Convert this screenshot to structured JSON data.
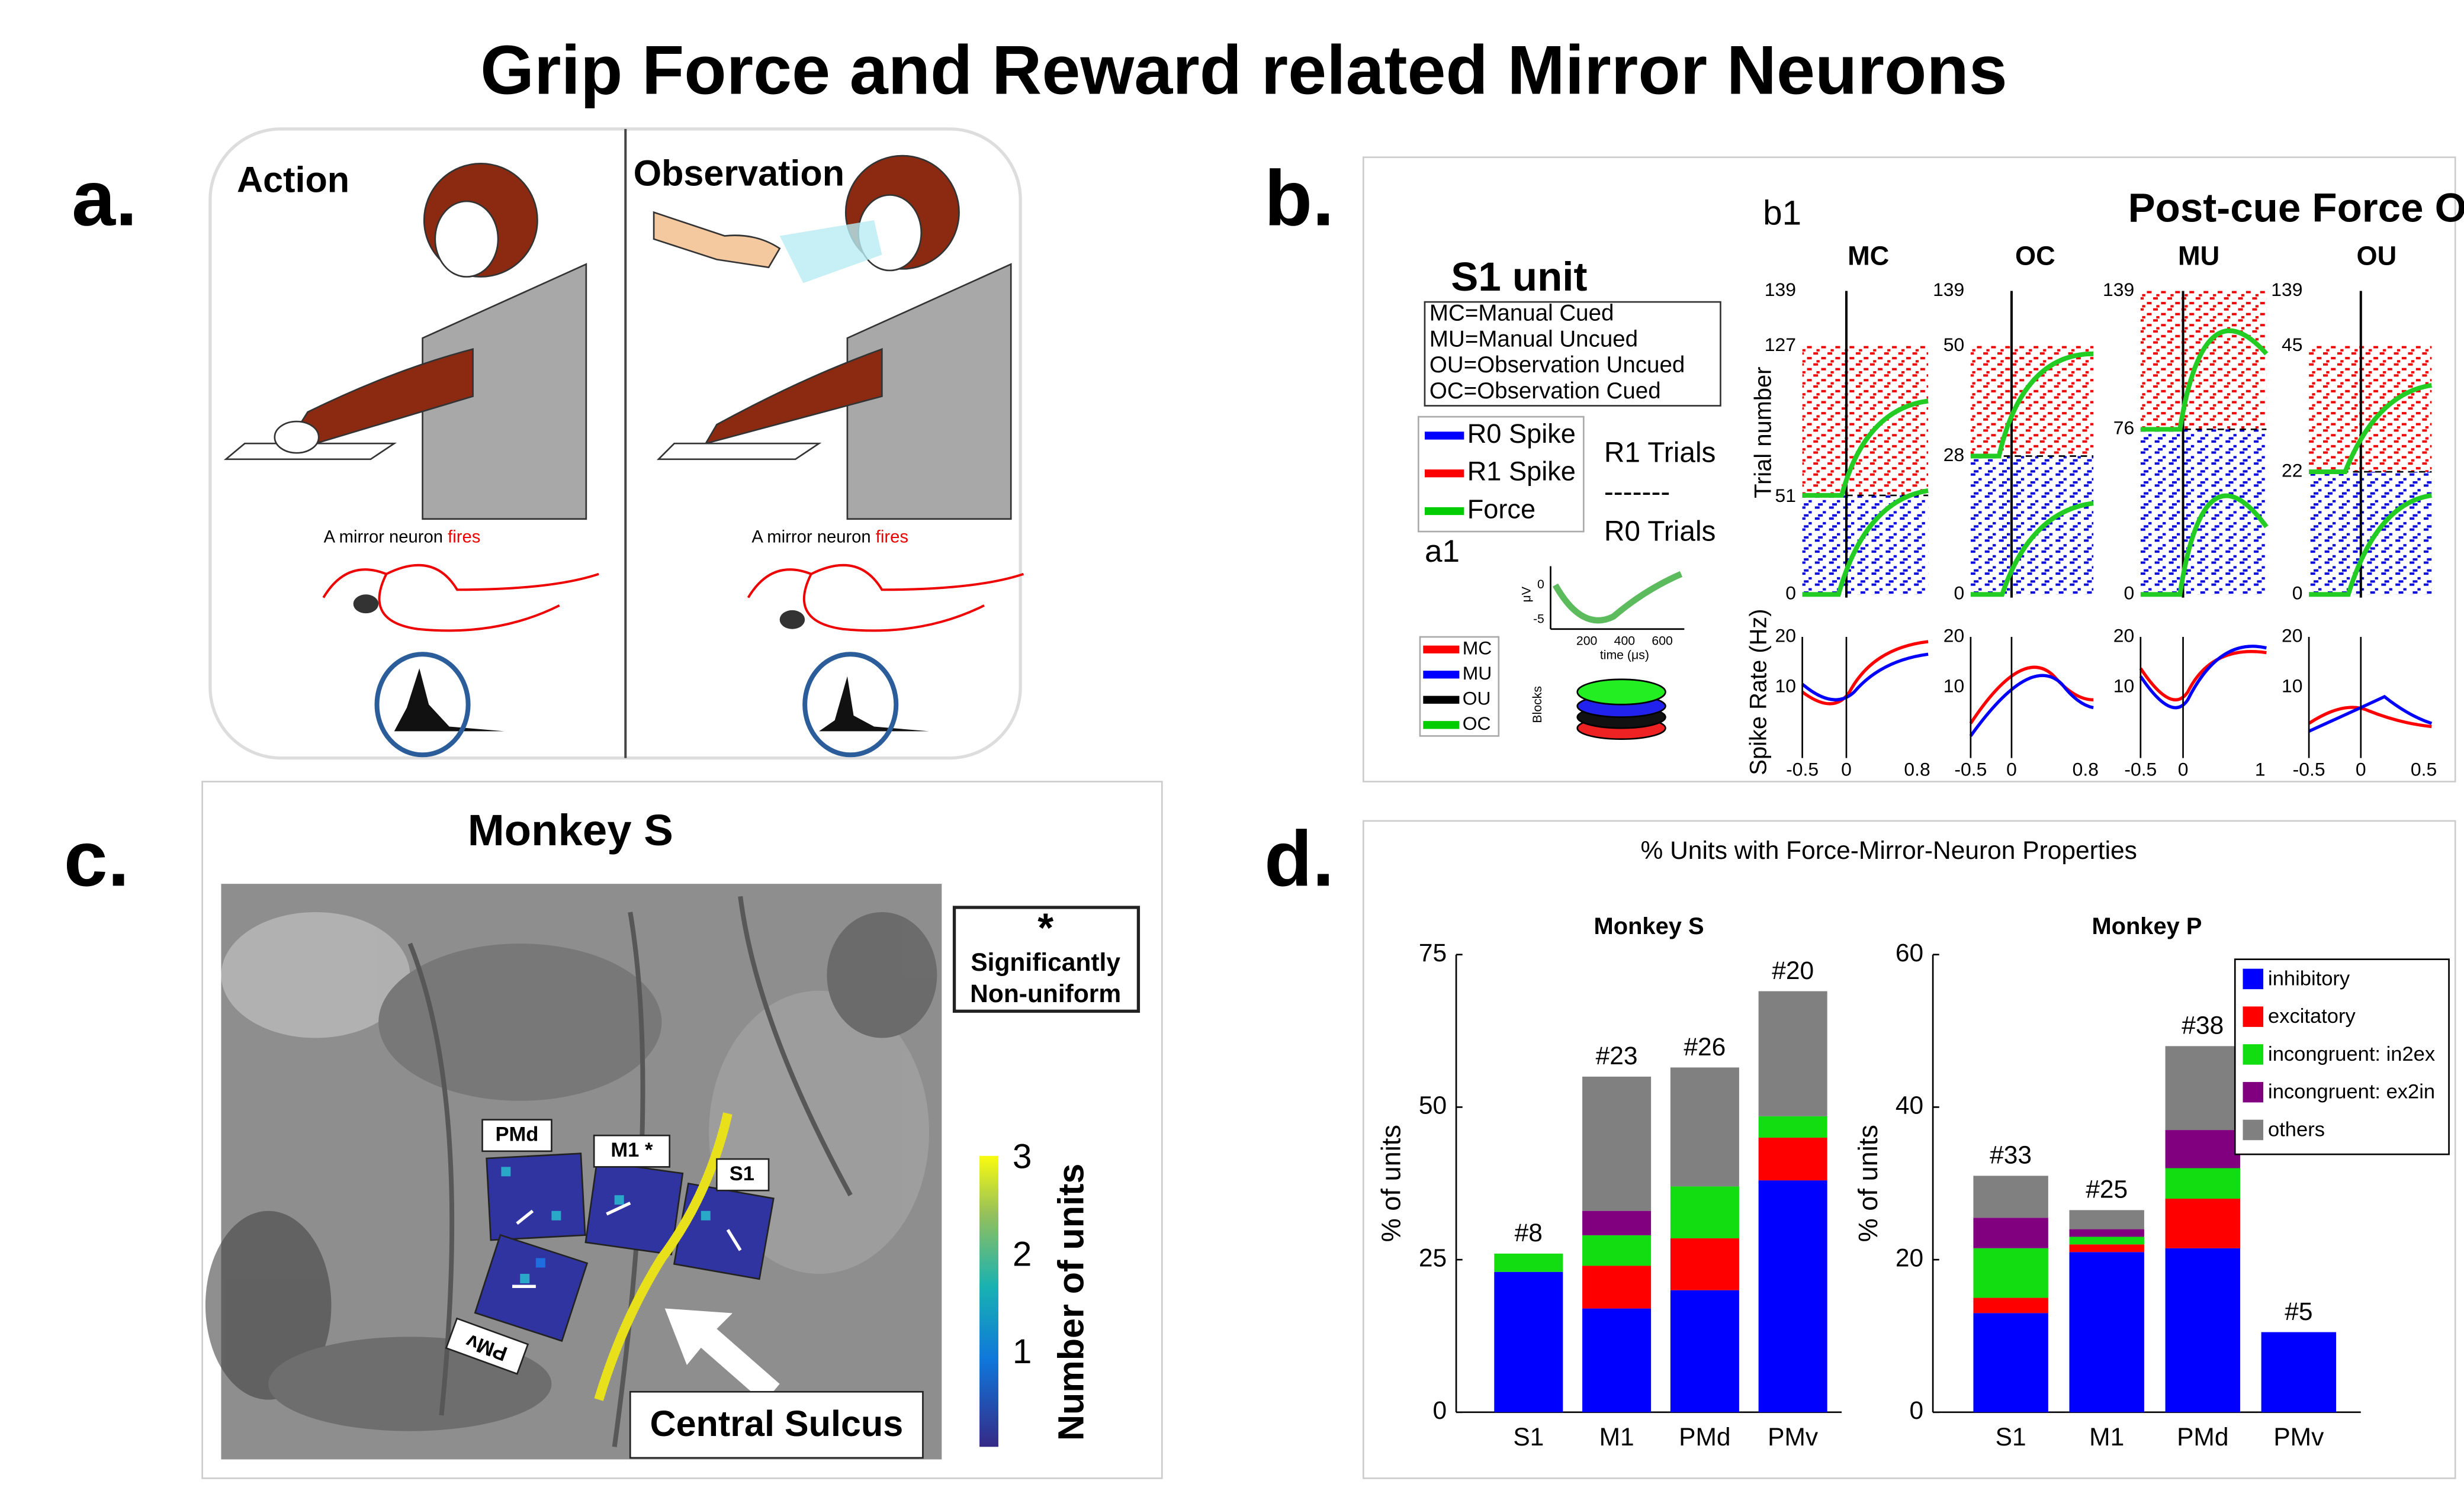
{
  "title": "Grip Force and Reward related Mirror Neurons",
  "panels": {
    "a": {
      "label": "a.",
      "action": "Action",
      "observation": "Observation",
      "caption_left": [
        "A mirror neuron ",
        "fires"
      ],
      "caption_right": [
        "A mirror neuron ",
        "fires"
      ]
    },
    "b": {
      "label": "b.",
      "sub": "b1",
      "title": "Post-cue Force Onset",
      "columns": [
        "MC",
        "OC",
        "MU",
        "OU"
      ],
      "unit": "S1 unit",
      "key": [
        "MC=Manual Cued",
        "MU=Manual Uncued",
        "OU=Observation Uncued",
        "OC=Observation Cued"
      ],
      "legend": [
        "R0 Spike",
        "R1 Spike",
        "Force"
      ],
      "trials": [
        "R1 Trials",
        "-------",
        "R0 Trials"
      ],
      "inset": "a1",
      "y_label_top": "Trial number",
      "y_label_bottom": "Spike Rate (Hz)",
      "raster_ticks": [
        [
          "139",
          "127",
          "51",
          "0"
        ],
        [
          "139",
          "50",
          "28",
          "0"
        ],
        [
          "139",
          "76",
          "0"
        ],
        [
          "139",
          "45",
          "22",
          "0"
        ]
      ],
      "rate_ticks": [
        "20",
        "10"
      ],
      "x_ticks": [
        [
          "-0.5",
          "0",
          "0.8"
        ],
        [
          "-0.5",
          "0",
          "0.8"
        ],
        [
          "-0.5",
          "0",
          "1"
        ],
        [
          "-0.5",
          "0",
          "0.5"
        ]
      ],
      "waveform": {
        "y_unit": "μV",
        "y_ticks": [
          "0",
          "-5"
        ],
        "x_ticks": [
          "200",
          "400",
          "600"
        ],
        "x_label": "time (μs)"
      },
      "pca": {
        "legend": [
          "MC",
          "MU",
          "OU",
          "OC"
        ],
        "y_label": "Blocks"
      }
    },
    "c": {
      "label": "c.",
      "title": "Monkey S",
      "star": "*",
      "note": [
        "Significantly",
        "Non-uniform"
      ],
      "arrays": [
        "PMd",
        "M1 *",
        "S1",
        "PMv"
      ],
      "sulcus": "Central Sulcus",
      "colorbar_ticks": [
        "3",
        "2",
        "1"
      ],
      "colorbar_label": "Number of units"
    },
    "d": {
      "label": "d.",
      "title": "% Units with Force-Mirror-Neuron Properties"
    }
  },
  "chart_data": [
    {
      "type": "bar",
      "stacked": true,
      "title": "Monkey S",
      "y_label": "% of units",
      "categories": [
        "S1",
        "M1",
        "PMd",
        "PMv"
      ],
      "bar_labels": [
        "#8",
        "#23",
        "#26",
        "#20"
      ],
      "ylim": [
        0,
        75
      ],
      "yticks": [
        0,
        25,
        50,
        75
      ],
      "series": [
        {
          "color": "#0000ff",
          "values": [
            23,
            17,
            20,
            38
          ]
        },
        {
          "color": "#ff0000",
          "values": [
            0,
            7,
            8.5,
            7
          ]
        },
        {
          "color": "#11dd11",
          "values": [
            3,
            5,
            8.5,
            3.5
          ]
        },
        {
          "color": "#800080",
          "values": [
            0,
            4,
            0,
            0
          ]
        },
        {
          "color": "#808080",
          "values": [
            0,
            22,
            19.5,
            20.5
          ]
        }
      ]
    },
    {
      "type": "bar",
      "stacked": true,
      "title": "Monkey P",
      "y_label": "% of units",
      "categories": [
        "S1",
        "M1",
        "PMd",
        "PMv"
      ],
      "bar_labels": [
        "#33",
        "#25",
        "#38",
        "#5"
      ],
      "ylim": [
        0,
        60
      ],
      "yticks": [
        0,
        20,
        40,
        60
      ],
      "legend": "upper right",
      "series": [
        {
          "name": "inhibitory",
          "color": "#0000ff",
          "values": [
            13,
            21,
            21.5,
            10.5
          ]
        },
        {
          "name": "excitatory",
          "color": "#ff0000",
          "values": [
            2,
            1,
            6.5,
            0
          ]
        },
        {
          "name": "incongruent: in2ex",
          "color": "#11dd11",
          "values": [
            6.5,
            1,
            4,
            0
          ]
        },
        {
          "name": "incongruent: ex2in",
          "color": "#800080",
          "values": [
            4,
            1,
            5,
            0
          ]
        },
        {
          "name": "others",
          "color": "#808080",
          "values": [
            5.5,
            2.5,
            11,
            0
          ]
        }
      ]
    }
  ]
}
